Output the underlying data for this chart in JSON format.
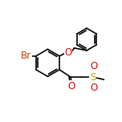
{
  "bg": "#ffffff",
  "bond_color": "#000000",
  "atom_colors": {
    "O": "#e00000",
    "Br": "#c04000",
    "S": "#c0a000",
    "C": "#000000"
  },
  "font_size": 7.5,
  "lw": 1.2
}
